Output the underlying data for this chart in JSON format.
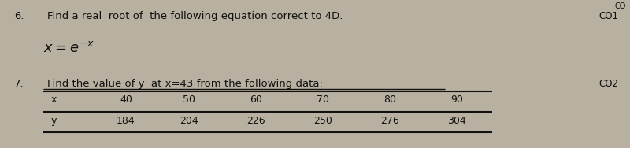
{
  "bg_color": "#b8b0a0",
  "q6_number": "6.",
  "q6_text": "Find a real  root of  the following equation correct to 4D.",
  "q6_formula": "$x=e^{-x}$",
  "q6_co": "CO1",
  "q7_number": "7.",
  "q7_text": "Find the value of y  at x=43 from the following data:",
  "q7_co": "CO2",
  "co_top": "CO",
  "table_x_label": "x",
  "table_y_label": "y",
  "table_x_values": [
    "40",
    "50",
    "60",
    "70",
    "80",
    "90"
  ],
  "table_y_values": [
    "184",
    "204",
    "226",
    "250",
    "276",
    "304"
  ],
  "text_color": "#111111",
  "font_size_main": 9.5,
  "font_size_formula": 13,
  "font_size_co": 8.5,
  "font_size_table": 9
}
